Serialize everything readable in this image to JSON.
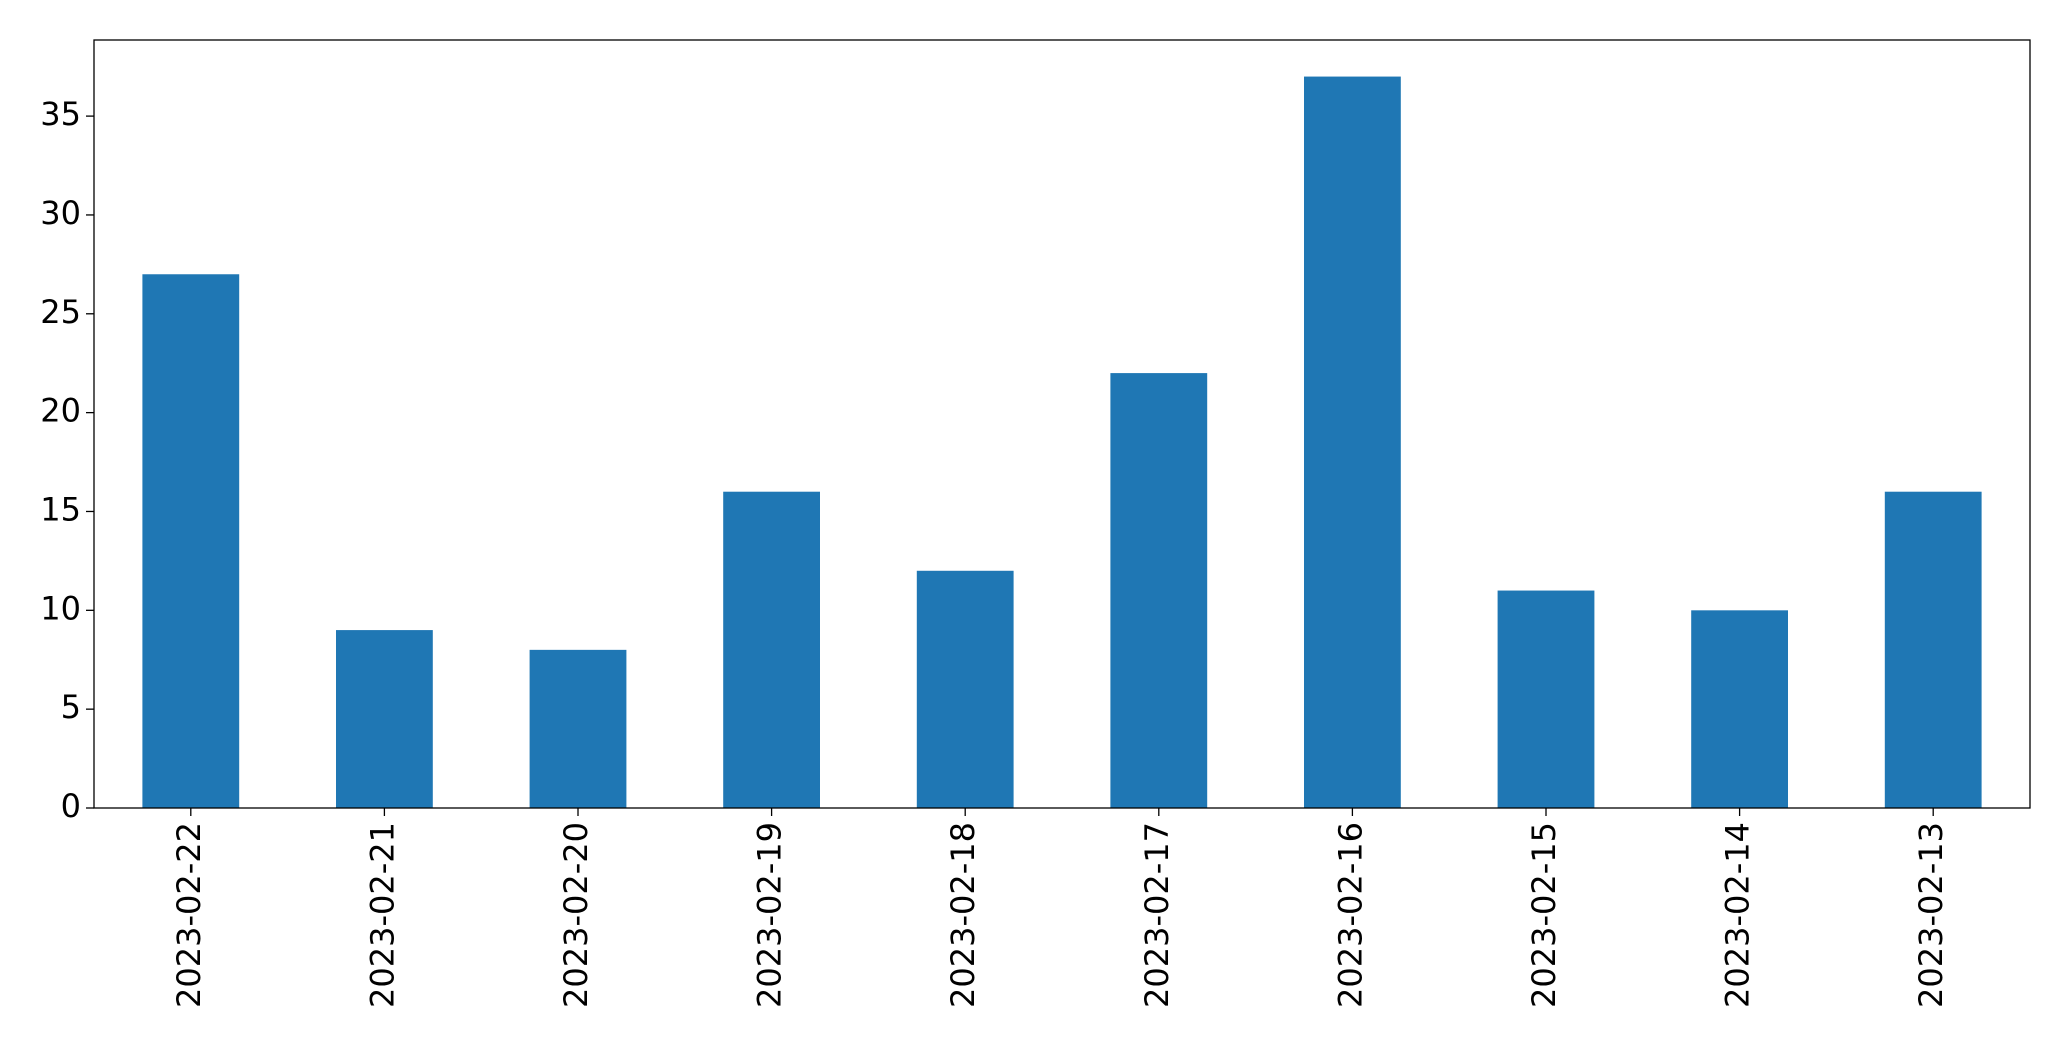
{
  "chart_data": {
    "type": "bar",
    "categories": [
      "2023-02-22",
      "2023-02-21",
      "2023-02-20",
      "2023-02-19",
      "2023-02-18",
      "2023-02-17",
      "2023-02-16",
      "2023-02-15",
      "2023-02-14",
      "2023-02-13"
    ],
    "values": [
      27,
      9,
      8,
      16,
      12,
      22,
      37,
      11,
      10,
      16
    ],
    "color": "#1f77b4",
    "ylim": [
      0,
      38.85
    ],
    "yticks": [
      0,
      5,
      10,
      15,
      20,
      25,
      30,
      35
    ],
    "grid": false
  }
}
